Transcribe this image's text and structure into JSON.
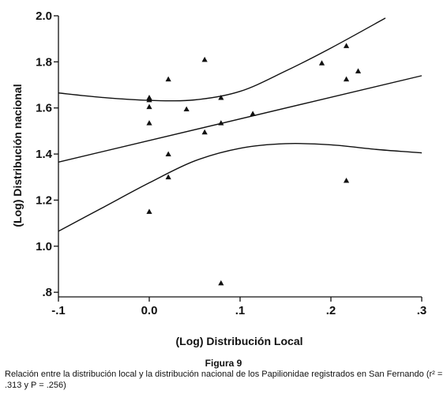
{
  "figure": {
    "title": "Figura 9",
    "caption": "Relación entre la distribución local y la distribución nacional de los Papilionidae registrados en San Fernando (r² = .313 y P = .256)"
  },
  "chart_data": {
    "type": "scatter",
    "xlabel": "(Log) Distribución Local",
    "ylabel": "(Log) Distribución nacional",
    "xlim": [
      -0.1,
      0.3
    ],
    "ylim": [
      0.78,
      2.0
    ],
    "x_ticks": [
      -0.1,
      0.0,
      0.1,
      0.2,
      0.3
    ],
    "x_tick_labels": [
      "-.1",
      "0.0",
      ".1",
      ".2",
      ".3"
    ],
    "y_ticks": [
      0.8,
      1.0,
      1.2,
      1.4,
      1.6,
      1.8,
      2.0
    ],
    "y_tick_labels": [
      ".8",
      "1.0",
      "1.2",
      "1.4",
      "1.6",
      "1.8",
      "2.0"
    ],
    "grid": false,
    "marker": "triangle",
    "color": "#111111",
    "points": [
      {
        "x": 0.0,
        "y": 1.645
      },
      {
        "x": 0.0,
        "y": 1.635
      },
      {
        "x": 0.0,
        "y": 1.605
      },
      {
        "x": 0.0,
        "y": 1.535
      },
      {
        "x": 0.0,
        "y": 1.15
      },
      {
        "x": 0.021,
        "y": 1.725
      },
      {
        "x": 0.021,
        "y": 1.4
      },
      {
        "x": 0.021,
        "y": 1.3
      },
      {
        "x": 0.041,
        "y": 1.595
      },
      {
        "x": 0.061,
        "y": 1.81
      },
      {
        "x": 0.061,
        "y": 1.495
      },
      {
        "x": 0.079,
        "y": 1.645
      },
      {
        "x": 0.079,
        "y": 1.535
      },
      {
        "x": 0.079,
        "y": 0.84
      },
      {
        "x": 0.114,
        "y": 1.575
      },
      {
        "x": 0.19,
        "y": 1.795
      },
      {
        "x": 0.217,
        "y": 1.87
      },
      {
        "x": 0.217,
        "y": 1.725
      },
      {
        "x": 0.217,
        "y": 1.285
      },
      {
        "x": 0.23,
        "y": 1.76
      }
    ],
    "fit_line": {
      "x": [
        -0.1,
        0.3
      ],
      "y": [
        1.365,
        1.74
      ]
    },
    "upper_band": {
      "x": [
        -0.1,
        -0.05,
        0.0,
        0.05,
        0.1,
        0.15,
        0.2,
        0.26
      ],
      "y": [
        1.665,
        1.645,
        1.633,
        1.635,
        1.672,
        1.76,
        1.86,
        1.99
      ]
    },
    "lower_band": {
      "x": [
        -0.1,
        -0.05,
        0.0,
        0.05,
        0.1,
        0.15,
        0.2,
        0.25,
        0.3
      ],
      "y": [
        1.065,
        1.17,
        1.275,
        1.37,
        1.425,
        1.445,
        1.44,
        1.42,
        1.405
      ]
    }
  }
}
